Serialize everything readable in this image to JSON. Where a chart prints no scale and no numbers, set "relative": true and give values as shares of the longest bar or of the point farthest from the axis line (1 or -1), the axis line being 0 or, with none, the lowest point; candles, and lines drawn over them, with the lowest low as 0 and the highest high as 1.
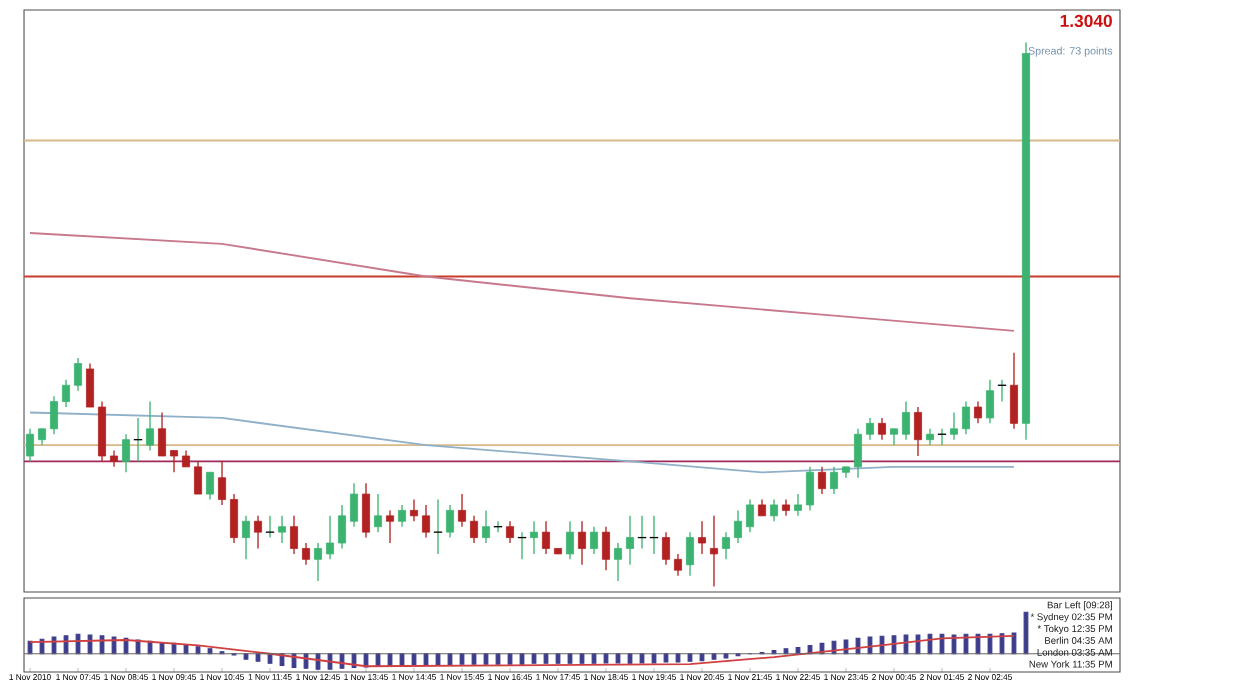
{
  "chart_data": [
    {
      "type": "candlestick",
      "relative": true,
      "categories": [
        null,
        null,
        null,
        null,
        null,
        null,
        null,
        null,
        null,
        null,
        null,
        null,
        null,
        null,
        null,
        null,
        null,
        null,
        null,
        null,
        null,
        null,
        null,
        null,
        null,
        null,
        null,
        null,
        null,
        null,
        null,
        null,
        null,
        null,
        null,
        null,
        null,
        null,
        null,
        null,
        null,
        null,
        null,
        null,
        null,
        null,
        null,
        null,
        null,
        null,
        null,
        null,
        null,
        null,
        null,
        null,
        null,
        null,
        null,
        null,
        null,
        null,
        null,
        null,
        null,
        null,
        null,
        null,
        null,
        null,
        null,
        null,
        null,
        null,
        null,
        null,
        null,
        null,
        null,
        null,
        null,
        null,
        null,
        null
      ],
      "ohlc": [
        [
          0.24,
          0.29,
          0.23,
          0.28
        ],
        [
          0.27,
          0.29,
          0.26,
          0.29
        ],
        [
          0.29,
          0.35,
          0.28,
          0.34
        ],
        [
          0.34,
          0.38,
          0.33,
          0.37
        ],
        [
          0.37,
          0.42,
          0.36,
          0.41
        ],
        [
          0.4,
          0.41,
          0.33,
          0.33
        ],
        [
          0.33,
          0.34,
          0.23,
          0.24
        ],
        [
          0.24,
          0.25,
          0.22,
          0.23
        ],
        [
          0.23,
          0.28,
          0.21,
          0.27
        ],
        [
          0.27,
          0.31,
          0.23,
          0.27
        ],
        [
          0.26,
          0.34,
          0.25,
          0.29
        ],
        [
          0.29,
          0.32,
          0.24,
          0.24
        ],
        [
          0.25,
          0.25,
          0.21,
          0.24
        ],
        [
          0.24,
          0.25,
          0.22,
          0.22
        ],
        [
          0.22,
          0.23,
          0.17,
          0.17
        ],
        [
          0.17,
          0.21,
          0.16,
          0.21
        ],
        [
          0.2,
          0.23,
          0.15,
          0.16
        ],
        [
          0.16,
          0.17,
          0.08,
          0.09
        ],
        [
          0.09,
          0.13,
          0.05,
          0.12
        ],
        [
          0.12,
          0.13,
          0.07,
          0.1
        ],
        [
          0.1,
          0.13,
          0.09,
          0.1
        ],
        [
          0.1,
          0.13,
          0.08,
          0.11
        ],
        [
          0.11,
          0.13,
          0.06,
          0.07
        ],
        [
          0.07,
          0.08,
          0.04,
          0.05
        ],
        [
          0.05,
          0.08,
          0.01,
          0.07
        ],
        [
          0.06,
          0.13,
          0.05,
          0.08
        ],
        [
          0.08,
          0.15,
          0.07,
          0.13
        ],
        [
          0.12,
          0.19,
          0.11,
          0.17
        ],
        [
          0.17,
          0.19,
          0.09,
          0.1
        ],
        [
          0.11,
          0.17,
          0.1,
          0.13
        ],
        [
          0.13,
          0.14,
          0.08,
          0.12
        ],
        [
          0.12,
          0.15,
          0.11,
          0.14
        ],
        [
          0.14,
          0.16,
          0.12,
          0.13
        ],
        [
          0.13,
          0.15,
          0.09,
          0.1
        ],
        [
          0.1,
          0.16,
          0.06,
          0.1
        ],
        [
          0.1,
          0.15,
          0.09,
          0.14
        ],
        [
          0.14,
          0.17,
          0.11,
          0.12
        ],
        [
          0.12,
          0.13,
          0.08,
          0.09
        ],
        [
          0.09,
          0.14,
          0.08,
          0.11
        ],
        [
          0.11,
          0.12,
          0.1,
          0.11
        ],
        [
          0.11,
          0.12,
          0.08,
          0.09
        ],
        [
          0.09,
          0.1,
          0.05,
          0.09
        ],
        [
          0.09,
          0.12,
          0.06,
          0.1
        ],
        [
          0.1,
          0.12,
          0.06,
          0.07
        ],
        [
          0.07,
          0.07,
          0.06,
          0.06
        ],
        [
          0.06,
          0.12,
          0.05,
          0.1
        ],
        [
          0.1,
          0.12,
          0.04,
          0.07
        ],
        [
          0.07,
          0.11,
          0.06,
          0.1
        ],
        [
          0.1,
          0.11,
          0.03,
          0.05
        ],
        [
          0.05,
          0.08,
          0.01,
          0.07
        ],
        [
          0.07,
          0.13,
          0.04,
          0.09
        ],
        [
          0.09,
          0.13,
          0.07,
          0.09
        ],
        [
          0.09,
          0.13,
          0.06,
          0.09
        ],
        [
          0.09,
          0.1,
          0.04,
          0.05
        ],
        [
          0.05,
          0.06,
          0.02,
          0.03
        ],
        [
          0.04,
          0.1,
          0.02,
          0.09
        ],
        [
          0.09,
          0.12,
          0.06,
          0.08
        ],
        [
          0.07,
          0.13,
          0.0,
          0.06
        ],
        [
          0.07,
          0.1,
          0.05,
          0.09
        ],
        [
          0.09,
          0.14,
          0.08,
          0.12
        ],
        [
          0.11,
          0.16,
          0.1,
          0.15
        ],
        [
          0.15,
          0.16,
          0.13,
          0.13
        ],
        [
          0.13,
          0.16,
          0.12,
          0.15
        ],
        [
          0.15,
          0.16,
          0.13,
          0.14
        ],
        [
          0.14,
          0.17,
          0.13,
          0.15
        ],
        [
          0.15,
          0.22,
          0.14,
          0.21
        ],
        [
          0.21,
          0.22,
          0.17,
          0.18
        ],
        [
          0.18,
          0.22,
          0.17,
          0.21
        ],
        [
          0.21,
          0.22,
          0.2,
          0.22
        ],
        [
          0.22,
          0.29,
          0.2,
          0.28
        ],
        [
          0.28,
          0.31,
          0.27,
          0.3
        ],
        [
          0.3,
          0.31,
          0.27,
          0.28
        ],
        [
          0.28,
          0.29,
          0.26,
          0.29
        ],
        [
          0.28,
          0.34,
          0.27,
          0.32
        ],
        [
          0.32,
          0.33,
          0.24,
          0.27
        ],
        [
          0.27,
          0.29,
          0.26,
          0.28
        ],
        [
          0.28,
          0.29,
          0.26,
          0.28
        ],
        [
          0.28,
          0.32,
          0.27,
          0.29
        ],
        [
          0.29,
          0.34,
          0.28,
          0.33
        ],
        [
          0.33,
          0.34,
          0.3,
          0.31
        ],
        [
          0.31,
          0.38,
          0.3,
          0.36
        ],
        [
          0.37,
          0.38,
          0.34,
          0.37
        ],
        [
          0.37,
          0.43,
          0.29,
          0.3
        ],
        [
          0.3,
          1,
          0.27,
          0.98
        ]
      ],
      "series": [
        {
          "type": "line",
          "color": "#c8788c",
          "values": [
            0.65,
            null,
            null,
            null,
            null,
            null,
            null,
            null,
            null,
            null,
            null,
            null,
            null,
            null,
            null,
            null,
            0.63,
            null,
            null,
            null,
            null,
            null,
            null,
            null,
            null,
            null,
            null,
            null,
            null,
            null,
            null,
            null,
            null,
            0.57,
            null,
            null,
            null,
            null,
            null,
            null,
            null,
            null,
            null,
            null,
            null,
            null,
            null,
            null,
            null,
            null,
            0.53,
            null,
            null,
            null,
            null,
            null,
            null,
            null,
            null,
            null,
            null,
            null,
            null,
            null,
            null,
            null,
            0.5,
            null,
            null,
            null,
            null,
            null,
            null,
            null,
            null,
            null,
            null,
            null,
            null,
            null,
            null,
            null,
            0.47,
            null
          ]
        },
        {
          "type": "line",
          "color": "#8fb0c8",
          "values": [
            0.32,
            null,
            null,
            null,
            null,
            null,
            null,
            null,
            null,
            null,
            null,
            null,
            null,
            null,
            null,
            null,
            0.31,
            null,
            null,
            null,
            null,
            null,
            null,
            null,
            null,
            null,
            null,
            null,
            null,
            null,
            null,
            null,
            null,
            0.26,
            null,
            null,
            null,
            null,
            null,
            null,
            null,
            null,
            null,
            null,
            null,
            null,
            null,
            null,
            null,
            null,
            0.23,
            null,
            null,
            null,
            null,
            null,
            null,
            null,
            null,
            null,
            null,
            0.21,
            null,
            null,
            null,
            null,
            null,
            null,
            null,
            null,
            null,
            null,
            0.22,
            null,
            null,
            null,
            null,
            null,
            null,
            null,
            null,
            null,
            0.22,
            null
          ]
        }
      ],
      "ref_lines": [
        {
          "axis": "y",
          "value": 0.82,
          "color": "#d8b888"
        },
        {
          "axis": "y",
          "value": 0.57,
          "color": "#c83c2c"
        },
        {
          "axis": "y",
          "value": 0.26,
          "color": "#d8b888"
        },
        {
          "axis": "y",
          "value": 0.23,
          "color": "#a0285a"
        }
      ],
      "annotations": [
        "1.3040",
        "Spread: 73 points"
      ]
    },
    {
      "type": "bar",
      "relative": true,
      "categories": [
        "1 Nov 2010",
        null,
        null,
        null,
        "1 Nov 07:45",
        null,
        null,
        null,
        "1 Nov 08:45",
        null,
        null,
        null,
        "1 Nov 09:45",
        null,
        null,
        null,
        "1 Nov 10:45",
        null,
        null,
        null,
        "1 Nov 11:45",
        null,
        null,
        null,
        "1 Nov 12:45",
        null,
        null,
        null,
        "1 Nov 13:45",
        null,
        null,
        null,
        "1 Nov 14:45",
        null,
        null,
        null,
        "1 Nov 15:45",
        null,
        null,
        null,
        "1 Nov 16:45",
        null,
        null,
        null,
        "1 Nov 17:45",
        null,
        null,
        null,
        "1 Nov 18:45",
        null,
        null,
        null,
        "1 Nov 19:45",
        null,
        null,
        null,
        "1 Nov 20:45",
        null,
        null,
        null,
        "1 Nov 21:45",
        null,
        null,
        null,
        "1 Nov 22:45",
        null,
        null,
        null,
        "1 Nov 23:45",
        null,
        null,
        null,
        "2 Nov 00:45",
        null,
        null,
        null,
        "2 Nov 01:45",
        null,
        null,
        null,
        "2 Nov 02:45",
        null,
        null,
        null
      ],
      "series": [
        {
          "type": "bar",
          "color": "#3c3c8c",
          "values": [
            0.3,
            0.35,
            0.4,
            0.43,
            0.47,
            0.45,
            0.43,
            0.4,
            0.37,
            0.33,
            0.3,
            0.27,
            0.25,
            0.2,
            0.17,
            0.12,
            0.05,
            -0.03,
            -0.13,
            -0.18,
            -0.23,
            -0.28,
            -0.33,
            -0.35,
            -0.37,
            -0.37,
            -0.35,
            -0.33,
            -0.32,
            -0.3,
            -0.3,
            -0.28,
            -0.28,
            -0.27,
            -0.27,
            -0.27,
            -0.25,
            -0.25,
            -0.25,
            -0.25,
            -0.25,
            -0.25,
            -0.23,
            -0.23,
            -0.23,
            -0.23,
            -0.23,
            -0.23,
            -0.22,
            -0.22,
            -0.23,
            -0.22,
            -0.22,
            -0.2,
            -0.2,
            -0.18,
            -0.17,
            -0.13,
            -0.1,
            -0.05,
            0,
            0.03,
            0.08,
            0.12,
            0.15,
            0.2,
            0.25,
            0.3,
            0.33,
            0.37,
            0.4,
            0.42,
            0.43,
            0.45,
            0.45,
            0.47,
            0.47,
            0.45,
            0.47,
            0.47,
            0.47,
            0.48,
            0.5,
            1
          ]
        },
        {
          "type": "line",
          "color": "#d04040",
          "values": [
            0.28,
            null,
            null,
            null,
            null,
            null,
            null,
            null,
            0.33,
            null,
            null,
            null,
            null,
            null,
            0.2,
            null,
            null,
            null,
            null,
            null,
            0,
            null,
            null,
            null,
            null,
            null,
            null,
            null,
            -0.3,
            null,
            null,
            null,
            null,
            null,
            null,
            null,
            null,
            null,
            null,
            null,
            -0.28,
            null,
            null,
            null,
            null,
            null,
            null,
            null,
            null,
            null,
            null,
            null,
            null,
            null,
            null,
            -0.25,
            null,
            null,
            null,
            null,
            null,
            null,
            -0.08,
            null,
            null,
            null,
            null,
            null,
            null,
            null,
            0.17,
            null,
            null,
            null,
            null,
            null,
            0.37,
            null,
            null,
            null,
            null,
            null,
            0.43,
            null
          ]
        }
      ],
      "annotations": [
        "Bar Left [09:28]",
        "* Sydney 02:35 PM",
        "* Tokyo 12:35 PM",
        "Berlin 04:35 AM",
        "London 03:35 AM",
        "New York 11:35 PM"
      ]
    }
  ]
}
